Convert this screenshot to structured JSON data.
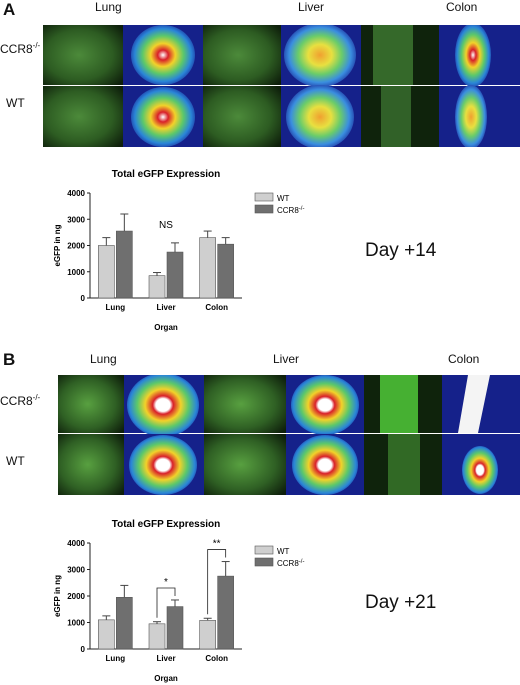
{
  "panels": [
    {
      "letter": "A",
      "organs": [
        "Lung",
        "Liver",
        "Colon"
      ],
      "rows": [
        "CCR8",
        "WT"
      ],
      "row_sup": "-/-",
      "day": "Day +14",
      "colors": {
        "wt": "#cfcfcf",
        "ccr8": "#6f6f6f"
      }
    },
    {
      "letter": "B",
      "organs": [
        "Lung",
        "Liver",
        "Colon"
      ],
      "rows": [
        "CCR8",
        "WT"
      ],
      "row_sup": "-/-",
      "day": "Day +21",
      "colors": {
        "wt": "#cfcfcf",
        "ccr8": "#6f6f6f"
      }
    }
  ],
  "chart_data": [
    {
      "type": "bar",
      "title": "Total eGFP Expression",
      "xlabel": "Organ",
      "ylabel": "eGFP in ng",
      "categories": [
        "Lung",
        "Liver",
        "Colon"
      ],
      "ylim": [
        0,
        4000
      ],
      "yticks": [
        "0",
        "1000",
        "2000",
        "3000",
        "4000"
      ],
      "series": [
        {
          "name": "WT",
          "values": [
            2000,
            850,
            2300
          ],
          "errors": [
            300,
            120,
            250
          ]
        },
        {
          "name": "CCR8",
          "name_sup": "-/-",
          "values": [
            2550,
            1750,
            2050
          ],
          "errors": [
            650,
            350,
            250
          ]
        }
      ],
      "annotations": [
        {
          "text": "NS"
        }
      ],
      "legend": "top-right"
    },
    {
      "type": "bar",
      "title": "Total eGFP Expression",
      "xlabel": "Organ",
      "ylabel": "eGFP in ng",
      "categories": [
        "Lung",
        "Liver",
        "Colon"
      ],
      "ylim": [
        0,
        4000
      ],
      "yticks": [
        "0",
        "1000",
        "2000",
        "3000",
        "4000"
      ],
      "series": [
        {
          "name": "WT",
          "values": [
            1100,
            950,
            1080
          ],
          "errors": [
            150,
            80,
            80
          ]
        },
        {
          "name": "CCR8",
          "name_sup": "-/-",
          "values": [
            1950,
            1600,
            2750
          ],
          "errors": [
            450,
            250,
            550
          ]
        }
      ],
      "annotations": [
        {
          "text": "*",
          "category": "Liver"
        },
        {
          "text": "**",
          "category": "Colon"
        }
      ],
      "legend": "top-right"
    }
  ]
}
